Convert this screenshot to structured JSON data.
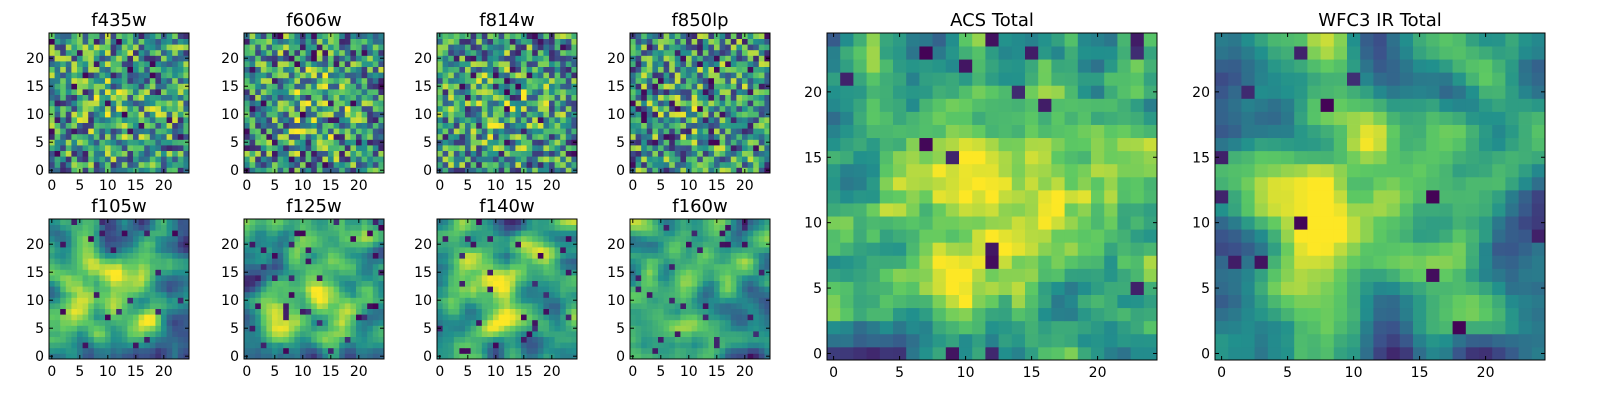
{
  "figure": {
    "colormap": [
      "#440154",
      "#3b528b",
      "#21908d",
      "#5dc963",
      "#fde725"
    ]
  },
  "chart_data": [
    {
      "type": "heatmap",
      "title": "f435w",
      "grid_size": 25,
      "xlim": [
        0,
        24
      ],
      "ylim": [
        0,
        24
      ],
      "xticks": [
        0,
        5,
        10,
        15,
        20
      ],
      "yticks": [
        0,
        5,
        10,
        15,
        20
      ],
      "texture": "noisy",
      "seed": 11,
      "center_peak": 0.12,
      "dark_rate": 0.06
    },
    {
      "type": "heatmap",
      "title": "f606w",
      "grid_size": 25,
      "xlim": [
        0,
        24
      ],
      "ylim": [
        0,
        24
      ],
      "xticks": [
        0,
        5,
        10,
        15,
        20
      ],
      "yticks": [
        0,
        5,
        10,
        15,
        20
      ],
      "texture": "noisy",
      "seed": 23,
      "center_peak": 0.18,
      "dark_rate": 0.08
    },
    {
      "type": "heatmap",
      "title": "f814w",
      "grid_size": 25,
      "xlim": [
        0,
        24
      ],
      "ylim": [
        0,
        24
      ],
      "xticks": [
        0,
        5,
        10,
        15,
        20
      ],
      "yticks": [
        0,
        5,
        10,
        15,
        20
      ],
      "texture": "noisy",
      "seed": 37,
      "center_peak": 0.15,
      "dark_rate": 0.07
    },
    {
      "type": "heatmap",
      "title": "f850lp",
      "grid_size": 25,
      "xlim": [
        0,
        24
      ],
      "ylim": [
        0,
        24
      ],
      "xticks": [
        0,
        5,
        10,
        15,
        20
      ],
      "yticks": [
        0,
        5,
        10,
        15,
        20
      ],
      "texture": "noisy",
      "seed": 41,
      "center_peak": 0.1,
      "dark_rate": 0.09
    },
    {
      "type": "heatmap",
      "title": "f105w",
      "grid_size": 25,
      "xlim": [
        0,
        24
      ],
      "ylim": [
        0,
        24
      ],
      "xticks": [
        0,
        5,
        10,
        15,
        20
      ],
      "yticks": [
        0,
        5,
        10,
        15,
        20
      ],
      "texture": "smooth",
      "seed": 53,
      "center_peak": 0.3,
      "dark_rate": 0.04
    },
    {
      "type": "heatmap",
      "title": "f125w",
      "grid_size": 25,
      "xlim": [
        0,
        24
      ],
      "ylim": [
        0,
        24
      ],
      "xticks": [
        0,
        5,
        10,
        15,
        20
      ],
      "yticks": [
        0,
        5,
        10,
        15,
        20
      ],
      "texture": "smooth",
      "seed": 67,
      "center_peak": 0.25,
      "dark_rate": 0.04
    },
    {
      "type": "heatmap",
      "title": "f140w",
      "grid_size": 25,
      "xlim": [
        0,
        24
      ],
      "ylim": [
        0,
        24
      ],
      "xticks": [
        0,
        5,
        10,
        15,
        20
      ],
      "yticks": [
        0,
        5,
        10,
        15,
        20
      ],
      "texture": "smooth",
      "seed": 71,
      "center_peak": 0.28,
      "dark_rate": 0.04
    },
    {
      "type": "heatmap",
      "title": "f160w",
      "grid_size": 25,
      "xlim": [
        0,
        24
      ],
      "ylim": [
        0,
        24
      ],
      "xticks": [
        0,
        5,
        10,
        15,
        20
      ],
      "yticks": [
        0,
        5,
        10,
        15,
        20
      ],
      "texture": "smooth",
      "seed": 83,
      "center_peak": 0.25,
      "dark_rate": 0.05
    },
    {
      "type": "heatmap",
      "title": "ACS Total",
      "grid_size": 25,
      "xlim": [
        0,
        24
      ],
      "ylim": [
        0,
        24
      ],
      "xticks": [
        0,
        5,
        10,
        15,
        20
      ],
      "yticks": [
        0,
        5,
        10,
        15,
        20
      ],
      "texture": "mixed",
      "seed": 97,
      "center_peak": 0.35,
      "dark_rate": 0.03
    },
    {
      "type": "heatmap",
      "title": "WFC3 IR Total",
      "grid_size": 25,
      "xlim": [
        0,
        24
      ],
      "ylim": [
        0,
        24
      ],
      "xticks": [
        0,
        5,
        10,
        15,
        20
      ],
      "yticks": [
        0,
        5,
        10,
        15,
        20
      ],
      "texture": "smooth",
      "seed": 101,
      "center_peak": 0.45,
      "dark_rate": 0.02
    }
  ]
}
